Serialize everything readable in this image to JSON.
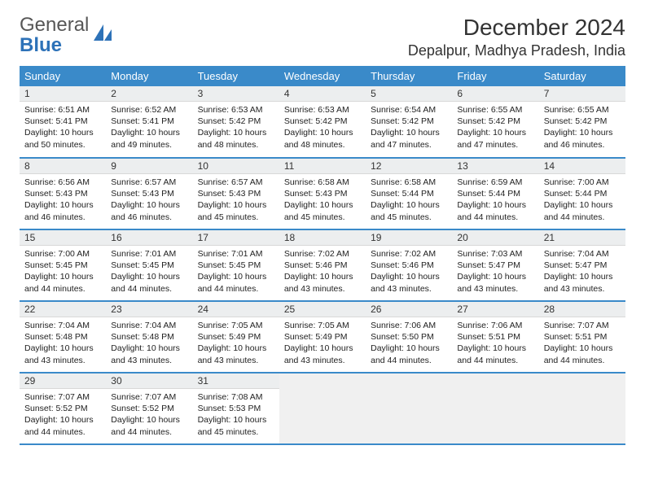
{
  "brand": {
    "word1": "General",
    "word2": "Blue"
  },
  "title": "December 2024",
  "location": "Depalpur, Madhya Pradesh, India",
  "colors": {
    "header_bg": "#3a8ac9",
    "header_fg": "#ffffff",
    "daynum_bg": "#eceeef",
    "row_border": "#3a8ac9",
    "empty_bg": "#f0f0f0"
  },
  "weekdays": [
    "Sunday",
    "Monday",
    "Tuesday",
    "Wednesday",
    "Thursday",
    "Friday",
    "Saturday"
  ],
  "weeks": [
    [
      {
        "n": "1",
        "sr": "6:51 AM",
        "ss": "5:41 PM",
        "dl": "10 hours and 50 minutes."
      },
      {
        "n": "2",
        "sr": "6:52 AM",
        "ss": "5:41 PM",
        "dl": "10 hours and 49 minutes."
      },
      {
        "n": "3",
        "sr": "6:53 AM",
        "ss": "5:42 PM",
        "dl": "10 hours and 48 minutes."
      },
      {
        "n": "4",
        "sr": "6:53 AM",
        "ss": "5:42 PM",
        "dl": "10 hours and 48 minutes."
      },
      {
        "n": "5",
        "sr": "6:54 AM",
        "ss": "5:42 PM",
        "dl": "10 hours and 47 minutes."
      },
      {
        "n": "6",
        "sr": "6:55 AM",
        "ss": "5:42 PM",
        "dl": "10 hours and 47 minutes."
      },
      {
        "n": "7",
        "sr": "6:55 AM",
        "ss": "5:42 PM",
        "dl": "10 hours and 46 minutes."
      }
    ],
    [
      {
        "n": "8",
        "sr": "6:56 AM",
        "ss": "5:43 PM",
        "dl": "10 hours and 46 minutes."
      },
      {
        "n": "9",
        "sr": "6:57 AM",
        "ss": "5:43 PM",
        "dl": "10 hours and 46 minutes."
      },
      {
        "n": "10",
        "sr": "6:57 AM",
        "ss": "5:43 PM",
        "dl": "10 hours and 45 minutes."
      },
      {
        "n": "11",
        "sr": "6:58 AM",
        "ss": "5:43 PM",
        "dl": "10 hours and 45 minutes."
      },
      {
        "n": "12",
        "sr": "6:58 AM",
        "ss": "5:44 PM",
        "dl": "10 hours and 45 minutes."
      },
      {
        "n": "13",
        "sr": "6:59 AM",
        "ss": "5:44 PM",
        "dl": "10 hours and 44 minutes."
      },
      {
        "n": "14",
        "sr": "7:00 AM",
        "ss": "5:44 PM",
        "dl": "10 hours and 44 minutes."
      }
    ],
    [
      {
        "n": "15",
        "sr": "7:00 AM",
        "ss": "5:45 PM",
        "dl": "10 hours and 44 minutes."
      },
      {
        "n": "16",
        "sr": "7:01 AM",
        "ss": "5:45 PM",
        "dl": "10 hours and 44 minutes."
      },
      {
        "n": "17",
        "sr": "7:01 AM",
        "ss": "5:45 PM",
        "dl": "10 hours and 44 minutes."
      },
      {
        "n": "18",
        "sr": "7:02 AM",
        "ss": "5:46 PM",
        "dl": "10 hours and 43 minutes."
      },
      {
        "n": "19",
        "sr": "7:02 AM",
        "ss": "5:46 PM",
        "dl": "10 hours and 43 minutes."
      },
      {
        "n": "20",
        "sr": "7:03 AM",
        "ss": "5:47 PM",
        "dl": "10 hours and 43 minutes."
      },
      {
        "n": "21",
        "sr": "7:04 AM",
        "ss": "5:47 PM",
        "dl": "10 hours and 43 minutes."
      }
    ],
    [
      {
        "n": "22",
        "sr": "7:04 AM",
        "ss": "5:48 PM",
        "dl": "10 hours and 43 minutes."
      },
      {
        "n": "23",
        "sr": "7:04 AM",
        "ss": "5:48 PM",
        "dl": "10 hours and 43 minutes."
      },
      {
        "n": "24",
        "sr": "7:05 AM",
        "ss": "5:49 PM",
        "dl": "10 hours and 43 minutes."
      },
      {
        "n": "25",
        "sr": "7:05 AM",
        "ss": "5:49 PM",
        "dl": "10 hours and 43 minutes."
      },
      {
        "n": "26",
        "sr": "7:06 AM",
        "ss": "5:50 PM",
        "dl": "10 hours and 44 minutes."
      },
      {
        "n": "27",
        "sr": "7:06 AM",
        "ss": "5:51 PM",
        "dl": "10 hours and 44 minutes."
      },
      {
        "n": "28",
        "sr": "7:07 AM",
        "ss": "5:51 PM",
        "dl": "10 hours and 44 minutes."
      }
    ],
    [
      {
        "n": "29",
        "sr": "7:07 AM",
        "ss": "5:52 PM",
        "dl": "10 hours and 44 minutes."
      },
      {
        "n": "30",
        "sr": "7:07 AM",
        "ss": "5:52 PM",
        "dl": "10 hours and 44 minutes."
      },
      {
        "n": "31",
        "sr": "7:08 AM",
        "ss": "5:53 PM",
        "dl": "10 hours and 45 minutes."
      },
      null,
      null,
      null,
      null
    ]
  ],
  "labels": {
    "sunrise": "Sunrise:",
    "sunset": "Sunset:",
    "daylight": "Daylight:"
  }
}
